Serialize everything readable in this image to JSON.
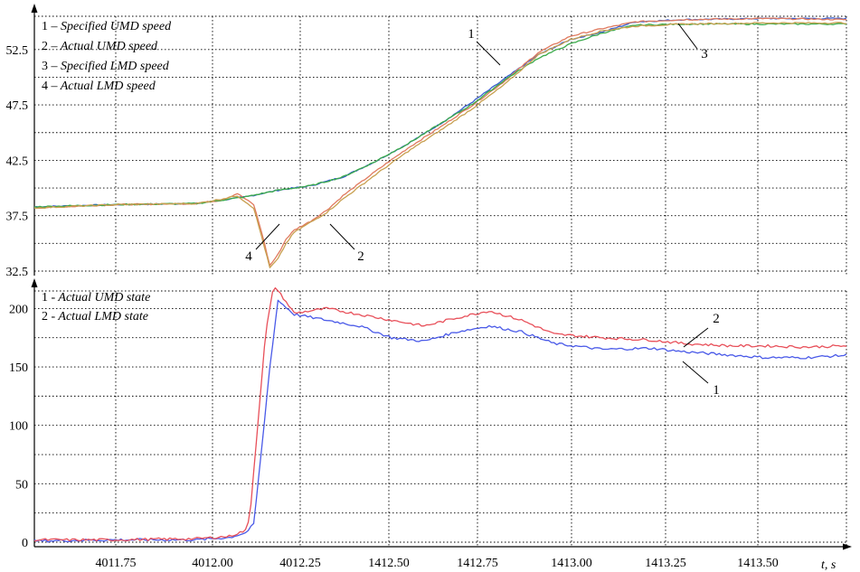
{
  "chart_data": [
    {
      "type": "line",
      "ylim": [
        32.5,
        55.5
      ],
      "yticks": [
        "52.5",
        "47.5",
        "42.5",
        "37.5",
        "32.5"
      ],
      "ytick_values": [
        52.5,
        47.5,
        42.5,
        37.5,
        32.5
      ],
      "legend_placement": "top-left",
      "grid": true,
      "legend": [
        {
          "num": "1 –",
          "text": " Specified UMD speed"
        },
        {
          "num": "2 –",
          "text": " Actual UMD speed"
        },
        {
          "num": "3 –",
          "text": " Specified LMD speed"
        },
        {
          "num": "4 –",
          "text": " Actual LMD speed"
        }
      ],
      "callouts": [
        "1",
        "2",
        "3",
        "4"
      ],
      "colors": {
        "s1": "#3a5fd0",
        "s2": "#e07a5f",
        "s3": "#3aaa4a",
        "s4": "#c8a050"
      },
      "series": [
        {
          "name": "1 – Specified UMD speed",
          "x": [
            0,
            0.1,
            0.2,
            0.26,
            0.3,
            0.34,
            0.38,
            0.42,
            0.46,
            0.5,
            0.54,
            0.58,
            0.62,
            0.66,
            0.7,
            0.74,
            0.8,
            0.9,
            1
          ],
          "y": [
            38.3,
            38.5,
            38.6,
            39.2,
            39.8,
            40.2,
            41.0,
            42.4,
            44.0,
            45.8,
            47.8,
            49.9,
            52.0,
            53.4,
            54.1,
            55.0,
            55.2,
            55.3,
            55.3
          ]
        },
        {
          "name": "2 – Actual UMD speed",
          "x": [
            0,
            0.1,
            0.2,
            0.23,
            0.25,
            0.27,
            0.28,
            0.29,
            0.3,
            0.31,
            0.32,
            0.34,
            0.36,
            0.38,
            0.42,
            0.46,
            0.5,
            0.54,
            0.58,
            0.62,
            0.66,
            0.7,
            0.74,
            0.8,
            0.9,
            1
          ],
          "y": [
            38.2,
            38.5,
            38.6,
            38.9,
            39.5,
            38.5,
            36.0,
            33.0,
            34.0,
            35.4,
            36.2,
            37.0,
            38.0,
            39.3,
            41.5,
            43.6,
            45.5,
            47.5,
            49.7,
            52.2,
            53.7,
            54.4,
            55.0,
            55.2,
            55.3,
            55.2
          ]
        },
        {
          "name": "3 – Specified LMD speed",
          "x": [
            0,
            0.1,
            0.2,
            0.26,
            0.3,
            0.34,
            0.38,
            0.42,
            0.46,
            0.5,
            0.54,
            0.58,
            0.62,
            0.66,
            0.7,
            0.74,
            0.8,
            0.9,
            1
          ],
          "y": [
            38.3,
            38.5,
            38.6,
            39.2,
            39.8,
            40.2,
            41.0,
            42.4,
            44.0,
            45.8,
            47.6,
            49.8,
            51.7,
            53.0,
            54.0,
            54.7,
            54.8,
            54.8,
            54.8
          ]
        },
        {
          "name": "4 – Actual LMD speed",
          "x": [
            0,
            0.1,
            0.2,
            0.23,
            0.25,
            0.27,
            0.28,
            0.29,
            0.3,
            0.31,
            0.32,
            0.34,
            0.36,
            0.38,
            0.42,
            0.46,
            0.5,
            0.54,
            0.58,
            0.62,
            0.66,
            0.7,
            0.74,
            0.8,
            0.9,
            1
          ],
          "y": [
            38.2,
            38.5,
            38.6,
            39.0,
            39.3,
            38.2,
            35.6,
            32.8,
            33.6,
            35.0,
            36.0,
            36.9,
            37.8,
            39.0,
            41.2,
            43.3,
            45.2,
            47.2,
            49.4,
            52.0,
            53.4,
            54.2,
            54.6,
            54.8,
            54.9,
            54.9
          ]
        }
      ]
    },
    {
      "type": "line",
      "ylim": [
        0,
        215
      ],
      "yticks": [
        "200",
        "150",
        "100",
        "50",
        "0"
      ],
      "ytick_values": [
        200,
        150,
        100,
        50,
        0
      ],
      "xlabel": "t, s",
      "xticks": [
        "4011.75",
        "4012.00",
        "4012.25",
        "1412.50",
        "1412.75",
        "1413.00",
        "1413.25",
        "1413.50"
      ],
      "legend_placement": "top-left",
      "grid": true,
      "legend": [
        {
          "num": "1 -",
          "text": " Actual UMD state"
        },
        {
          "num": "2 -",
          "text": " Actual LMD state"
        }
      ],
      "callouts": [
        "1",
        "2"
      ],
      "colors": {
        "s1": "#4a5ae8",
        "s2": "#e8505a"
      },
      "series": [
        {
          "name": "1 - Actual UMD state",
          "x": [
            0,
            0.1,
            0.2,
            0.24,
            0.26,
            0.27,
            0.28,
            0.29,
            0.3,
            0.32,
            0.36,
            0.4,
            0.44,
            0.48,
            0.52,
            0.56,
            0.6,
            0.64,
            0.7,
            0.76,
            0.8,
            0.86,
            0.9,
            0.95,
            1
          ],
          "y": [
            1,
            2,
            2,
            4,
            8,
            15,
            80,
            150,
            207,
            195,
            190,
            185,
            175,
            172,
            180,
            185,
            180,
            170,
            165,
            166,
            163,
            160,
            158,
            158,
            160
          ]
        },
        {
          "name": "2 - Actual LMD state",
          "x": [
            0,
            0.1,
            0.2,
            0.24,
            0.26,
            0.265,
            0.275,
            0.285,
            0.295,
            0.32,
            0.36,
            0.4,
            0.44,
            0.48,
            0.52,
            0.56,
            0.6,
            0.64,
            0.7,
            0.76,
            0.8,
            0.86,
            0.9,
            0.95,
            1
          ],
          "y": [
            2,
            2,
            3,
            5,
            10,
            20,
            100,
            180,
            220,
            196,
            200,
            195,
            190,
            185,
            192,
            198,
            190,
            178,
            175,
            173,
            170,
            168,
            168,
            167,
            168
          ]
        }
      ]
    }
  ]
}
